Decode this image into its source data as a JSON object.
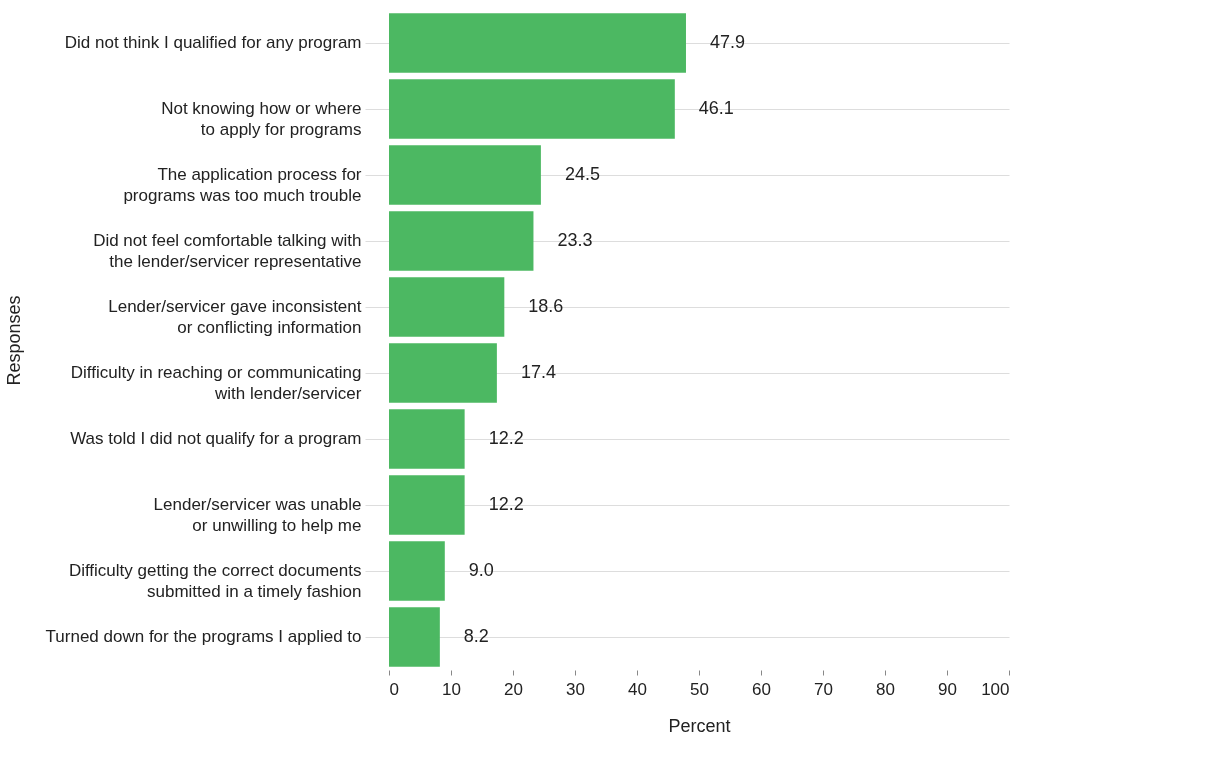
{
  "chart_data": {
    "type": "bar",
    "orientation": "horizontal",
    "xlabel": "Percent",
    "ylabel": "Responses",
    "categories": [
      "Did not think I qualified for any program",
      "Not knowing how or where\nto apply for programs",
      "The application process for\nprograms was too much trouble",
      "Did not feel comfortable talking with\nthe lender/servicer representative",
      "Lender/servicer gave inconsistent\nor conflicting information",
      "Difficulty in reaching or communicating\nwith lender/servicer",
      "Was told I did not qualify for a program",
      "Lender/servicer was unable\nor unwilling to help me",
      "Difficulty getting the correct documents\nsubmitted in a timely fashion",
      "Turned down for the programs I applied to"
    ],
    "values": [
      47.9,
      46.1,
      24.5,
      23.3,
      18.6,
      17.4,
      12.2,
      12.2,
      9.0,
      8.2
    ],
    "value_labels": [
      "47.9",
      "46.1",
      "24.5",
      "23.3",
      "18.6",
      "17.4",
      "12.2",
      "12.2",
      "9.0",
      "8.2"
    ],
    "color": "#4cb862",
    "xlim": [
      0,
      100
    ],
    "xticks": [
      0,
      10,
      20,
      30,
      40,
      50,
      60,
      70,
      80,
      90,
      100
    ],
    "grid": "y"
  }
}
